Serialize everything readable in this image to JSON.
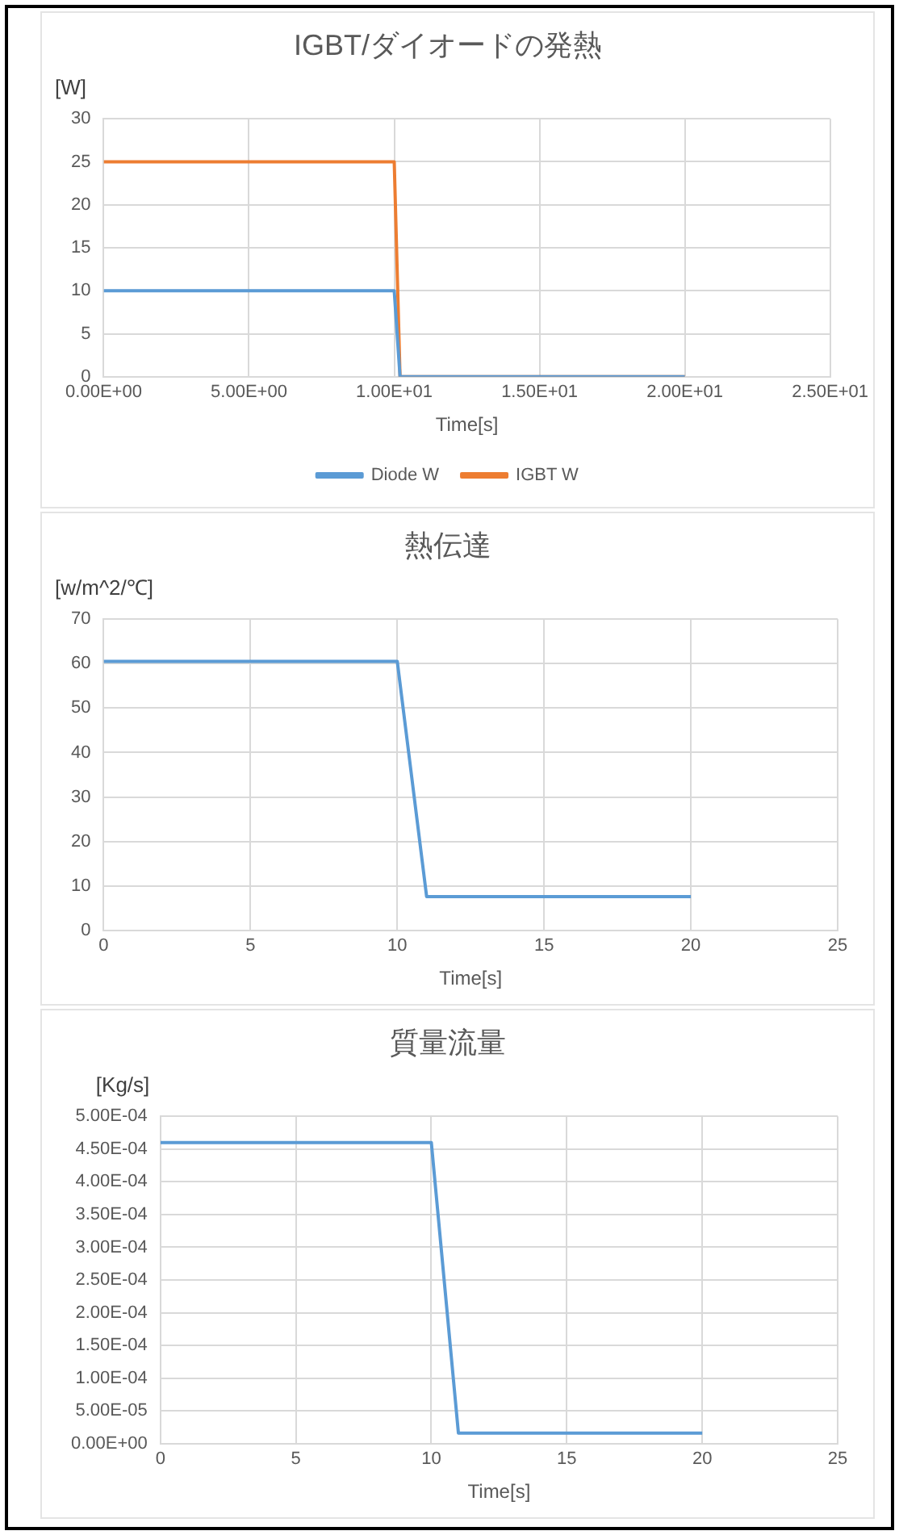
{
  "chart_data": [
    {
      "type": "line",
      "title": "IGBT/ダイオードの発熱",
      "xlabel": "Time[s]",
      "ylabel": "[W]",
      "x": [
        0,
        10,
        10.2,
        20
      ],
      "series": [
        {
          "name": "Diode W",
          "color": "#5b9bd5",
          "values": [
            10,
            10,
            0,
            0
          ]
        },
        {
          "name": "IGBT W",
          "color": "#ed7d31",
          "values": [
            25,
            25,
            0,
            0
          ]
        }
      ],
      "xlim": [
        0,
        25
      ],
      "xticks": [
        {
          "value": 0,
          "label": "0.00E+00"
        },
        {
          "value": 5,
          "label": "5.00E+00"
        },
        {
          "value": 10,
          "label": "1.00E+01"
        },
        {
          "value": 15,
          "label": "1.50E+01"
        },
        {
          "value": 20,
          "label": "2.00E+01"
        },
        {
          "value": 25,
          "label": "2.50E+01"
        }
      ],
      "ylim": [
        0,
        30
      ],
      "yticks": [
        0,
        5,
        10,
        15,
        20,
        25,
        30
      ],
      "grid": true,
      "legend": "bottom",
      "marker": "none",
      "line_style": "solid"
    },
    {
      "type": "line",
      "title": "熱伝達",
      "xlabel": "Time[s]",
      "ylabel": "[w/m^2/℃]",
      "x": [
        0,
        10,
        11,
        20
      ],
      "series": [
        {
          "color": "#5b9bd5",
          "values": [
            60.5,
            60.5,
            7.6,
            7.6
          ]
        }
      ],
      "xlim": [
        0,
        25
      ],
      "xticks": [
        0,
        5,
        10,
        15,
        20,
        25
      ],
      "ylim": [
        0,
        70
      ],
      "yticks": [
        0,
        10,
        20,
        30,
        40,
        50,
        60,
        70
      ],
      "grid": true,
      "marker": "none",
      "line_style": "solid"
    },
    {
      "type": "line",
      "title": "質量流量",
      "xlabel": "Time[s]",
      "ylabel": "[Kg/s]",
      "x": [
        0,
        10,
        11,
        20
      ],
      "series": [
        {
          "color": "#5b9bd5",
          "values": [
            0.00046,
            0.00046,
            1.6e-05,
            1.6e-05
          ]
        }
      ],
      "xlim": [
        0,
        25
      ],
      "xticks": [
        0,
        5,
        10,
        15,
        20,
        25
      ],
      "ylim": [
        0,
        0.0005
      ],
      "yticks": [
        {
          "value": 0,
          "label": "0.00E+00"
        },
        {
          "value": 5e-05,
          "label": "5.00E-05"
        },
        {
          "value": 0.0001,
          "label": "1.00E-04"
        },
        {
          "value": 0.00015,
          "label": "1.50E-04"
        },
        {
          "value": 0.0002,
          "label": "2.00E-04"
        },
        {
          "value": 0.00025,
          "label": "2.50E-04"
        },
        {
          "value": 0.0003,
          "label": "3.00E-04"
        },
        {
          "value": 0.00035,
          "label": "3.50E-04"
        },
        {
          "value": 0.0004,
          "label": "4.00E-04"
        },
        {
          "value": 0.00045,
          "label": "4.50E-04"
        },
        {
          "value": 0.0005,
          "label": "5.00E-04"
        }
      ],
      "grid": true,
      "marker": "none",
      "line_style": "solid"
    }
  ]
}
